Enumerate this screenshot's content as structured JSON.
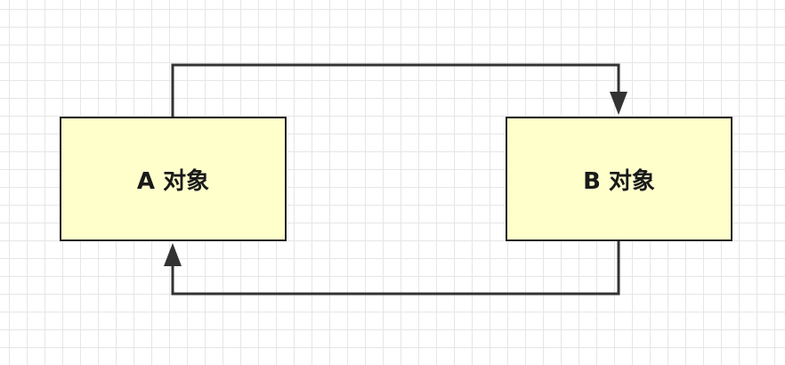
{
  "diagram": {
    "nodes": [
      {
        "id": "a",
        "label": "A 对象"
      },
      {
        "id": "b",
        "label": "B 对象"
      }
    ],
    "edges": [
      {
        "from": "a",
        "to": "b"
      },
      {
        "from": "b",
        "to": "a"
      }
    ],
    "colors": {
      "node_fill": "#ffffcc",
      "node_border": "#222222",
      "edge": "#333333",
      "grid": "#e6e6e6"
    }
  }
}
